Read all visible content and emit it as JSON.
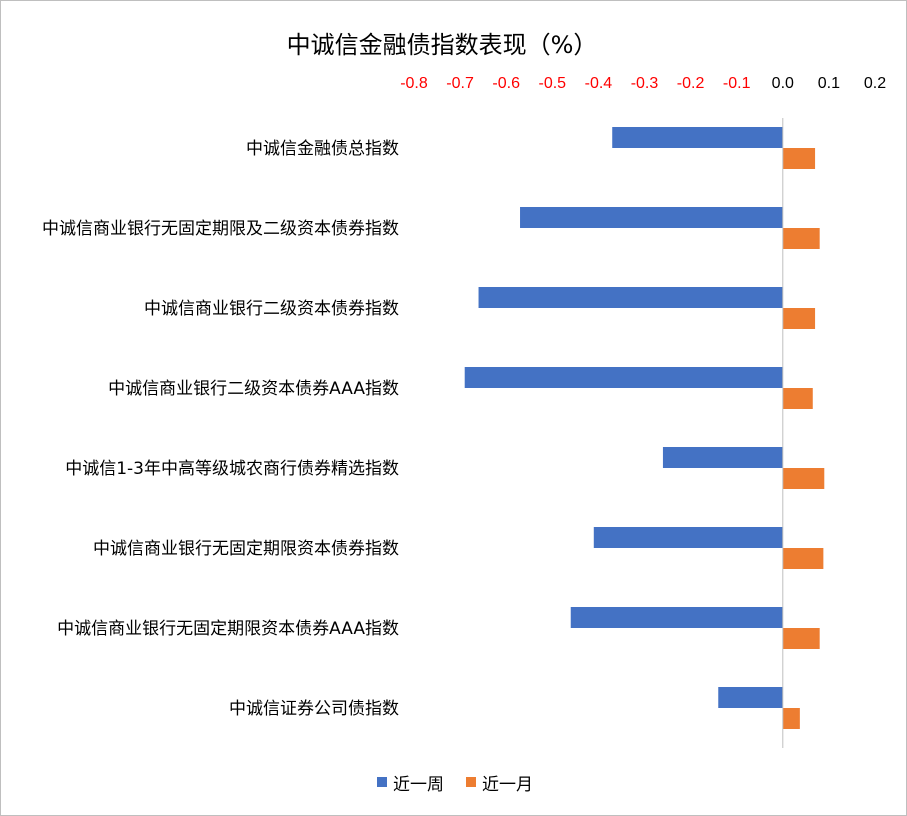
{
  "chart_data": {
    "type": "bar",
    "orientation": "horizontal",
    "title": "中诚信金融债指数表现（%）",
    "categories": [
      "中诚信金融债总指数",
      "中诚信商业银行无固定期限及二级资本债券指数",
      "中诚信商业银行二级资本债券指数",
      "中诚信商业银行二级资本债券AAA指数",
      "中诚信1-3年中高等级城农商行债券精选指数",
      "中诚信商业银行无固定期限资本债券指数",
      "中诚信商业银行无固定期限资本债券AAA指数",
      "中诚信证券公司债指数"
    ],
    "series": [
      {
        "name": "近一周",
        "color": "#4472c4",
        "values": [
          -0.37,
          -0.57,
          -0.66,
          -0.69,
          -0.26,
          -0.41,
          -0.46,
          -0.14
        ]
      },
      {
        "name": "近一月",
        "color": "#ed7d31",
        "values": [
          0.07,
          0.08,
          0.07,
          0.065,
          0.09,
          0.088,
          0.08,
          0.037
        ]
      }
    ],
    "xlim": [
      -0.8,
      0.2
    ],
    "x_ticks": [
      "-0.8",
      "-0.7",
      "-0.6",
      "-0.5",
      "-0.4",
      "-0.3",
      "-0.2",
      "-0.1",
      "0.0",
      "0.1",
      "0.2"
    ],
    "x_tick_values": [
      -0.8,
      -0.7,
      -0.6,
      -0.5,
      -0.4,
      -0.3,
      -0.2,
      -0.1,
      0.0,
      0.1,
      0.2
    ],
    "x_axis_position": "top",
    "negative_tick_color": "#ff0000",
    "positive_tick_color": "#000000",
    "grid": false,
    "legend_position": "bottom"
  }
}
